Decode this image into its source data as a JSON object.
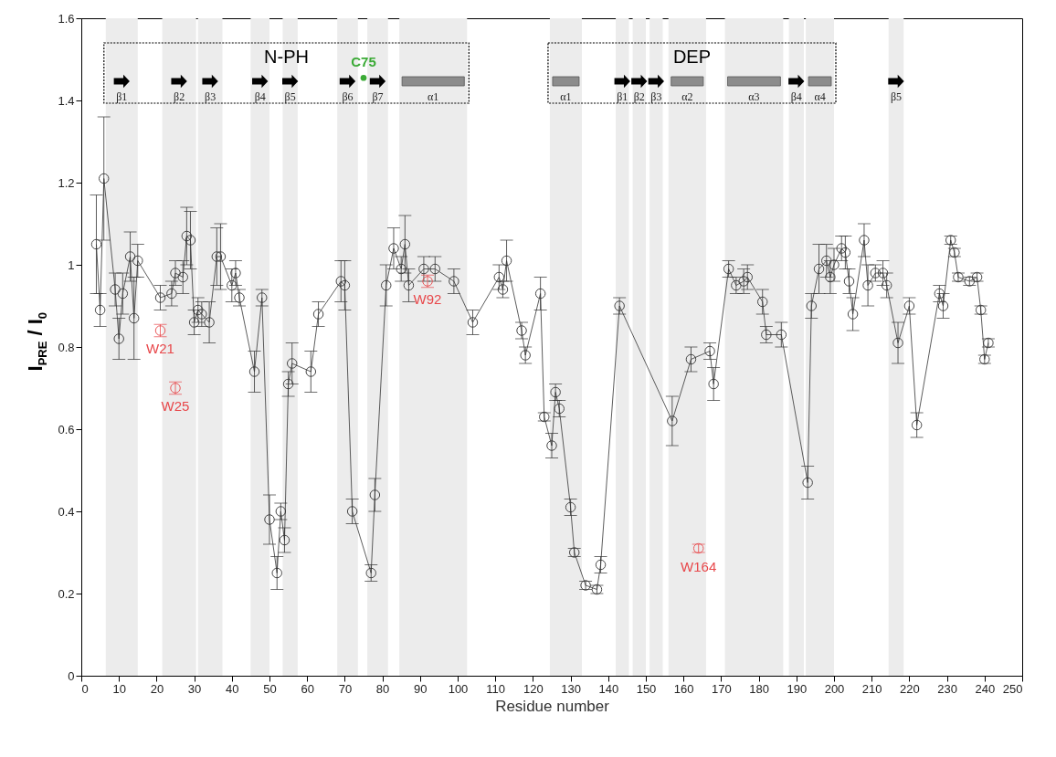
{
  "chart_data": {
    "type": "line",
    "xlabel": "Residue number",
    "ylabel": "I$_{PRE}$ / I$_{0}$",
    "xlim": [
      0,
      250
    ],
    "xticks": [
      0,
      10,
      20,
      30,
      40,
      50,
      60,
      70,
      80,
      90,
      100,
      110,
      120,
      130,
      140,
      150,
      160,
      170,
      180,
      190,
      200,
      210,
      220,
      230,
      240,
      250
    ],
    "ylim": [
      0,
      1.6
    ],
    "yticks": [
      0,
      0.2,
      0.4,
      0.6,
      0.8,
      1,
      1.2,
      1.4,
      1.6
    ],
    "marker": "circle",
    "series": [
      {
        "color": "#333333",
        "x": [
          4,
          5,
          6,
          9,
          10,
          11,
          13,
          14,
          15,
          21,
          24,
          25,
          27,
          28,
          29,
          30,
          31,
          32,
          34,
          36,
          37,
          40,
          41,
          42,
          46,
          48,
          50,
          52,
          53,
          54,
          55,
          56,
          61,
          63,
          69,
          70,
          72,
          77,
          78,
          81,
          83,
          85,
          86,
          87,
          91,
          94,
          99,
          104,
          111,
          112,
          113,
          117,
          118,
          122,
          123,
          125,
          126,
          127,
          130,
          131,
          134,
          137,
          138,
          143,
          157,
          162,
          167,
          168,
          172,
          174,
          176,
          177,
          181,
          182,
          186,
          193,
          194,
          196,
          198,
          199,
          200,
          202,
          203,
          204,
          205,
          208,
          209,
          211,
          213,
          214,
          217,
          220,
          222,
          228,
          229,
          231,
          232,
          233,
          236,
          238,
          239,
          240,
          241
        ],
        "values": [
          1.05,
          0.89,
          1.21,
          0.94,
          0.82,
          0.93,
          1.02,
          0.87,
          1.01,
          0.92,
          0.93,
          0.98,
          0.97,
          1.07,
          1.06,
          0.86,
          0.89,
          0.88,
          0.86,
          1.02,
          1.02,
          0.95,
          0.98,
          0.92,
          0.74,
          0.92,
          0.38,
          0.25,
          0.4,
          0.33,
          0.71,
          0.76,
          0.74,
          0.88,
          0.96,
          0.95,
          0.4,
          0.25,
          0.44,
          0.95,
          1.04,
          0.99,
          1.05,
          0.95,
          0.99,
          0.99,
          0.96,
          0.86,
          0.97,
          0.94,
          1.01,
          0.84,
          0.78,
          0.93,
          0.63,
          0.56,
          0.69,
          0.65,
          0.41,
          0.3,
          0.22,
          0.21,
          0.27,
          0.9,
          0.62,
          0.77,
          0.79,
          0.71,
          0.99,
          0.95,
          0.96,
          0.97,
          0.91,
          0.83,
          0.83,
          0.47,
          0.9,
          0.99,
          1.01,
          0.97,
          1.0,
          1.04,
          1.03,
          0.96,
          0.88,
          1.06,
          0.95,
          0.98,
          0.98,
          0.95,
          0.81,
          0.9,
          0.61,
          0.93,
          0.9,
          1.06,
          1.03,
          0.97,
          0.96,
          0.97,
          0.89,
          0.77,
          0.81
        ],
        "errors": [
          0.12,
          0.04,
          0.15,
          0.04,
          0.05,
          0.05,
          0.06,
          0.1,
          0.04,
          0.03,
          0.03,
          0.03,
          0.04,
          0.07,
          0.07,
          0.03,
          0.03,
          0.03,
          0.05,
          0.07,
          0.08,
          0.04,
          0.03,
          0.02,
          0.05,
          0.02,
          0.06,
          0.04,
          0.02,
          0.03,
          0.03,
          0.05,
          0.05,
          0.03,
          0.05,
          0.06,
          0.03,
          0.02,
          0.04,
          0.05,
          0.05,
          0.03,
          0.07,
          0.04,
          0.03,
          0.03,
          0.03,
          0.03,
          0.03,
          0.02,
          0.05,
          0.02,
          0.02,
          0.04,
          0.01,
          0.03,
          0.02,
          0.02,
          0.02,
          0.01,
          0.01,
          0.01,
          0.02,
          0.02,
          0.06,
          0.03,
          0.02,
          0.04,
          0.02,
          0.02,
          0.03,
          0.03,
          0.03,
          0.02,
          0.03,
          0.04,
          0.03,
          0.06,
          0.04,
          0.04,
          0.04,
          0.03,
          0.04,
          0.03,
          0.04,
          0.04,
          0.05,
          0.02,
          0.03,
          0.03,
          0.05,
          0.02,
          0.03,
          0.02,
          0.03,
          0.01,
          0.01,
          0.01,
          0.01,
          0.01,
          0.01,
          0.01,
          0.01
        ]
      },
      {
        "type": "scatter",
        "color": "#e8474a",
        "x": [
          21,
          25,
          92,
          164
        ],
        "values": [
          0.84,
          0.7,
          0.96,
          0.31
        ],
        "errors": [
          0.015,
          0.015,
          0.015,
          0.01
        ],
        "value_labels": [
          "W21",
          "W25",
          "W92",
          "W164"
        ]
      }
    ],
    "bands": [
      {
        "axis": "x",
        "from": 6.5,
        "to": 15,
        "label": "β1"
      },
      {
        "axis": "x",
        "from": 21.5,
        "to": 30.5,
        "label": "β2"
      },
      {
        "axis": "x",
        "from": 31,
        "to": 37.5,
        "label": "β3"
      },
      {
        "axis": "x",
        "from": 45,
        "to": 50,
        "label": "β4"
      },
      {
        "axis": "x",
        "from": 53.5,
        "to": 57.5,
        "label": "β5"
      },
      {
        "axis": "x",
        "from": 68,
        "to": 73.5,
        "label": "β6"
      },
      {
        "axis": "x",
        "from": 76,
        "to": 81.5,
        "label": "β7"
      },
      {
        "axis": "x",
        "from": 84.5,
        "to": 102.5,
        "label": "α1",
        "color": "#ececec"
      },
      {
        "axis": "x",
        "from": 124.5,
        "to": 133,
        "label": "α1",
        "color": "#ececec"
      },
      {
        "axis": "x",
        "from": 142,
        "to": 145.5,
        "label": "β1"
      },
      {
        "axis": "x",
        "from": 146.5,
        "to": 150,
        "label": "β2"
      },
      {
        "axis": "x",
        "from": 151,
        "to": 154.5,
        "label": "β3"
      },
      {
        "axis": "x",
        "from": 156,
        "to": 166,
        "label": "α2",
        "color": "#ececec"
      },
      {
        "axis": "x",
        "from": 171,
        "to": 186.5,
        "label": "α3",
        "color": "#ececec"
      },
      {
        "axis": "x",
        "from": 188,
        "to": 192,
        "label": "β4"
      },
      {
        "axis": "x",
        "from": 192.5,
        "to": 200,
        "label": "α4",
        "color": "#ececec"
      },
      {
        "axis": "x",
        "from": 214.5,
        "to": 218.5,
        "label": "β5"
      }
    ],
    "annotations": [
      "N-PH",
      "DEP",
      {
        "text": "C75",
        "x": 75,
        "y": 1.455
      }
    ]
  }
}
